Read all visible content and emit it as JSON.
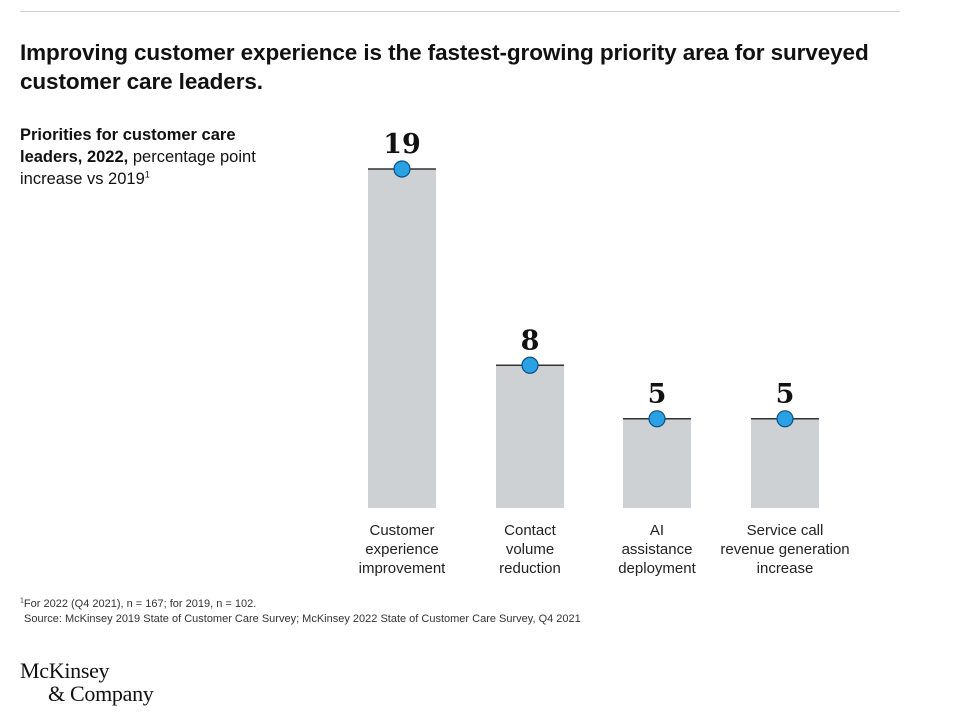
{
  "title": "Improving customer experience is the fastest-growing priority area for surveyed customer care leaders.",
  "subtitle": {
    "bold": "Priorities for customer care leaders, 2022,",
    "normal": "percentage point increase vs 2019",
    "footnote_marker": "1"
  },
  "chart_data": {
    "type": "bar",
    "title": "Priorities for customer care leaders, 2022, percentage point increase vs 2019",
    "categories": [
      [
        "Customer",
        "experience",
        "improvement"
      ],
      [
        "Contact",
        "volume",
        "reduction"
      ],
      [
        "AI",
        "assistance",
        "deployment"
      ],
      [
        "Service call",
        "revenue generation",
        "increase"
      ]
    ],
    "values": [
      19,
      8,
      5,
      5
    ],
    "value_labels": [
      "19",
      "8",
      "5",
      "5"
    ],
    "ylim": [
      0,
      19
    ],
    "xlabel": "",
    "ylabel": "",
    "colors": {
      "bar": "#cdd1d3",
      "dot": "#2aa1e3",
      "dot_stroke": "#0a4f8a",
      "cap": "#333333"
    }
  },
  "footnote": {
    "marker": "1",
    "text": "For 2022 (Q4 2021), n = 167; for 2019, n = 102.",
    "source": "Source: McKinsey 2019 State of Customer Care Survey; McKinsey 2022 State of Customer Care Survey, Q4 2021"
  },
  "logo": {
    "line1": "McKinsey",
    "line2": "& Company"
  }
}
